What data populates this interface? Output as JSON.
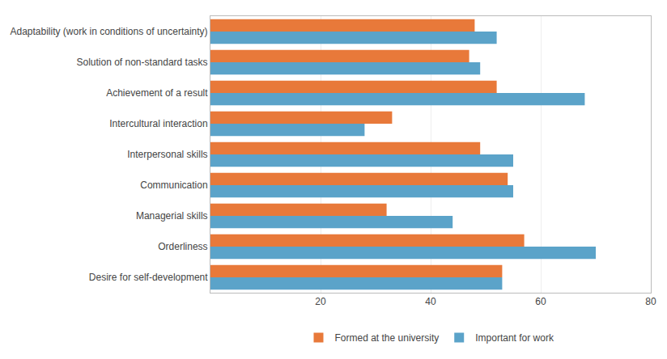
{
  "chart_data": {
    "type": "bar",
    "orientation": "horizontal",
    "categories": [
      "Desire for self-development",
      "Orderliness",
      "Managerial skills",
      "Communication",
      "Interpersonal skills",
      "Intercultural interaction",
      "Achievement of a result",
      "Solution of non-standard tasks",
      "Adaptability (work in conditions of uncertainty)"
    ],
    "series": [
      {
        "name": "Formed at the university",
        "color": "#E8793A",
        "values": [
          53,
          57,
          32,
          54,
          49,
          33,
          52,
          47,
          48
        ]
      },
      {
        "name": "Important for work",
        "color": "#5BA3C9",
        "values": [
          53,
          70,
          44,
          55,
          55,
          28,
          68,
          49,
          52
        ]
      }
    ],
    "xlim": [
      0,
      80
    ],
    "xticks": [
      20,
      40,
      60,
      80
    ],
    "grid": true,
    "legend": "bottom"
  }
}
